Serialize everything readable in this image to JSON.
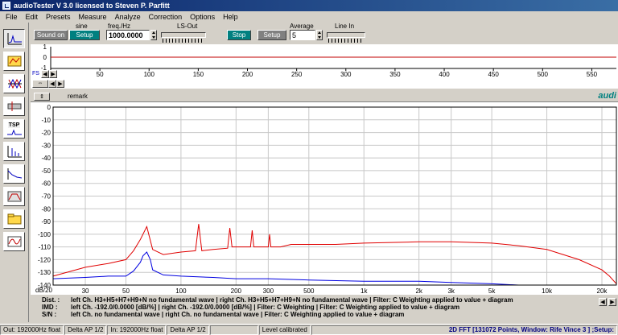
{
  "window": {
    "title": "audioTester  V 3.0   licensed to Steven P. Parfitt"
  },
  "menu": [
    {
      "label": "File"
    },
    {
      "label": "Edit"
    },
    {
      "label": "Presets"
    },
    {
      "label": "Measure"
    },
    {
      "label": "Analyze"
    },
    {
      "label": "Correction"
    },
    {
      "label": "Options"
    },
    {
      "label": "Help"
    }
  ],
  "sidebar": {
    "buttons": [
      {
        "icon": "frequency-response-icon"
      },
      {
        "icon": "map-icon"
      },
      {
        "icon": "phase-response-icon"
      },
      {
        "icon": "impulse-icon"
      },
      {
        "icon": "tsp-icon",
        "label": "TSP"
      },
      {
        "icon": "waterfall-icon"
      },
      {
        "icon": "thd-curve-icon"
      },
      {
        "icon": "filter-icon"
      },
      {
        "icon": "folder-icon"
      },
      {
        "icon": "sweep-icon"
      }
    ]
  },
  "controls": {
    "sound_on": "Sound on",
    "setup1": "Setup",
    "signal_type": "sine",
    "freq_label": "freq./Hz",
    "freq_value": "1000.0000",
    "ls_out": "LS-Out",
    "stop": "Stop",
    "setup2": "Setup",
    "average_label": "Average",
    "average_value": "5",
    "line_in": "Line In"
  },
  "top_panel": {
    "scroll_label": "FS",
    "axis_labels": [
      "0",
      "50",
      "100",
      "150",
      "200",
      "250",
      "300",
      "350",
      "400",
      "450",
      "500",
      "550"
    ],
    "y_labels": [
      "1",
      "0",
      "-1"
    ]
  },
  "remark": {
    "label": "remark",
    "brand": "audi"
  },
  "info": {
    "dist_key": "Dist. :",
    "dist_text": "left Ch. H3+H5+H7+H9+N  no fundamental wave  |  right Ch. H3+H5+H7+H9+N  no fundamental wave  |  Filter: C Weighting applied to value + diagram",
    "imd_key": "IMD :",
    "imd_text": "left Ch. -192.0/0.0000 [dB/%]  |  right Ch. -192.0/0.0000 [dB/%]  |  Filter: C Weighting  |  Filter: C Weighting applied to value + diagram",
    "sn_key": "S/N :",
    "sn_text": "left Ch.  no fundamental wave  |  right Ch.  no fundamental wave  |  Filter: C Weighting applied to value + diagram"
  },
  "status": {
    "out": "Out: 192000Hz float",
    "delta_out": "Delta AP 1/2",
    "in": "In: 192000Hz float",
    "delta_in": "Delta AP 1/2",
    "calib": "Level calibrated",
    "fft": "2D FFT [131072 Points, Window: Rife Vince 3 ] ;Setup:"
  },
  "colors": {
    "left_channel": "#e00000",
    "right_channel": "#0000e0",
    "accent": "#008080"
  },
  "chart_data": {
    "type": "line",
    "xscale": "log",
    "xlim": [
      20,
      24000
    ],
    "ylim": [
      -140,
      0
    ],
    "ylabel": "dB/20",
    "y_ticks": [
      "0",
      "-10",
      "-20",
      "-30",
      "-40",
      "-50",
      "-60",
      "-70",
      "-80",
      "-90",
      "-100",
      "-110",
      "-120",
      "-130",
      "-140"
    ],
    "x_ticks": [
      {
        "v": 30,
        "l": "30"
      },
      {
        "v": 50,
        "l": "50"
      },
      {
        "v": 100,
        "l": "100"
      },
      {
        "v": 200,
        "l": "200"
      },
      {
        "v": 300,
        "l": "300"
      },
      {
        "v": 500,
        "l": "500"
      },
      {
        "v": 1000,
        "l": "1k"
      },
      {
        "v": 2000,
        "l": "2k"
      },
      {
        "v": 3000,
        "l": "3k"
      },
      {
        "v": 5000,
        "l": "5k"
      },
      {
        "v": 10000,
        "l": "10k"
      },
      {
        "v": 20000,
        "l": "20k"
      }
    ],
    "series": [
      {
        "color": "#e00000",
        "x": [
          20,
          30,
          40,
          50,
          55,
          60,
          65,
          70,
          80,
          100,
          120,
          125,
          130,
          150,
          180,
          185,
          190,
          200,
          240,
          245,
          250,
          300,
          305,
          310,
          350,
          400,
          500,
          700,
          1000,
          2000,
          3000,
          5000,
          7000,
          10000,
          15000,
          20000,
          22000,
          24000
        ],
        "y": [
          -133,
          -126,
          -123,
          -120,
          -113,
          -104,
          -94,
          -112,
          -116,
          -114,
          -113,
          -92,
          -113,
          -112,
          -111,
          -95,
          -110,
          -110,
          -110,
          -97,
          -110,
          -110,
          -100,
          -110,
          -110,
          -108,
          -108,
          -108,
          -107,
          -106,
          -106,
          -107,
          -109,
          -112,
          -120,
          -128,
          -133,
          -139
        ]
      },
      {
        "color": "#0000e0",
        "x": [
          20,
          30,
          40,
          50,
          55,
          60,
          62,
          65,
          68,
          70,
          80,
          100,
          150,
          200,
          300,
          500,
          1000,
          2000,
          3000,
          5000,
          7000,
          10000,
          12000
        ],
        "y": [
          -135,
          -134,
          -133,
          -133,
          -129,
          -122,
          -117,
          -114,
          -120,
          -128,
          -132,
          -133,
          -134,
          -135,
          -135,
          -136,
          -137,
          -137,
          -138,
          -139,
          -140,
          -140,
          -140
        ]
      }
    ]
  }
}
